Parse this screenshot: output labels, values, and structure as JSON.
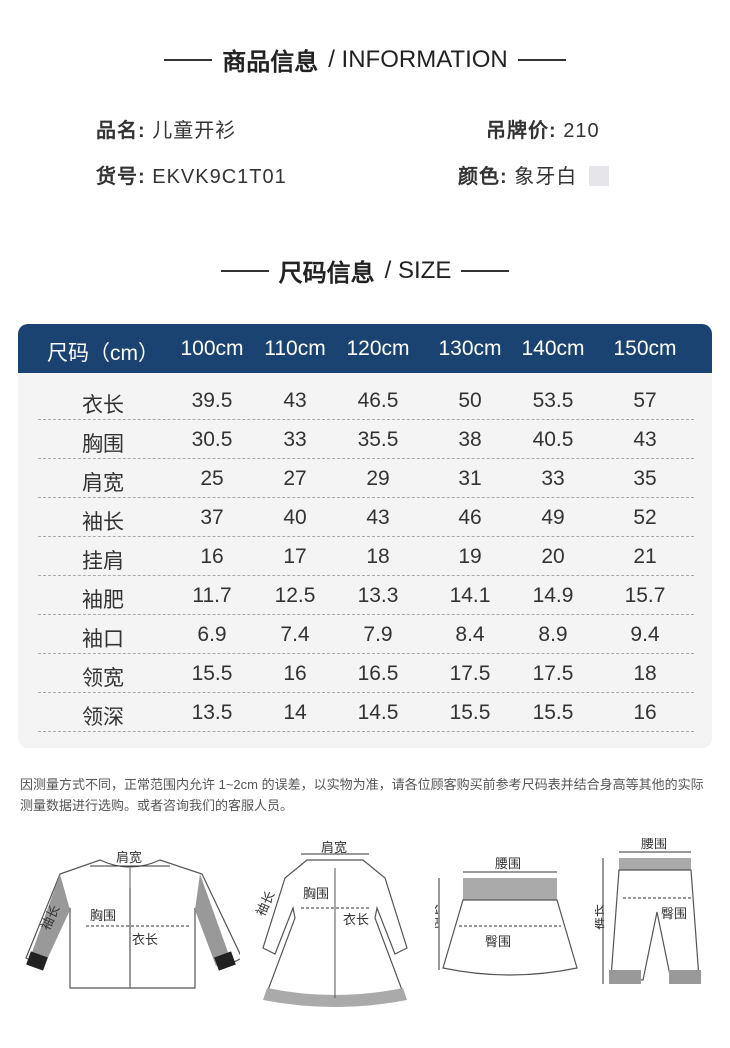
{
  "info_section": {
    "title_cn": "商品信息",
    "title_en": "/ INFORMATION"
  },
  "info": {
    "name_label": "品名:",
    "name_value": "儿童开衫",
    "price_label": "吊牌价:",
    "price_value": "210",
    "sku_label": "货号:",
    "sku_value": "EKVK9C1T01",
    "color_label": "颜色:",
    "color_value": "象牙白",
    "color_swatch": "#e6e6ea"
  },
  "size_section": {
    "title_cn": "尺码信息",
    "title_en": "/ SIZE"
  },
  "table": {
    "header": [
      "尺码（cm）",
      "100cm",
      "110cm",
      "120cm",
      "130cm",
      "140cm",
      "150cm"
    ],
    "rows": [
      [
        "衣长",
        "39.5",
        "43",
        "46.5",
        "50",
        "53.5",
        "57"
      ],
      [
        "胸围",
        "30.5",
        "33",
        "35.5",
        "38",
        "40.5",
        "43"
      ],
      [
        "肩宽",
        "25",
        "27",
        "29",
        "31",
        "33",
        "35"
      ],
      [
        "袖长",
        "37",
        "40",
        "43",
        "46",
        "49",
        "52"
      ],
      [
        "挂肩",
        "16",
        "17",
        "18",
        "19",
        "20",
        "21"
      ],
      [
        "袖肥",
        "11.7",
        "12.5",
        "13.3",
        "14.1",
        "14.9",
        "15.7"
      ],
      [
        "袖口",
        "6.9",
        "7.4",
        "7.9",
        "8.4",
        "8.9",
        "9.4"
      ],
      [
        "领宽",
        "15.5",
        "16",
        "16.5",
        "17.5",
        "17.5",
        "18"
      ],
      [
        "领深",
        "13.5",
        "14",
        "14.5",
        "15.5",
        "15.5",
        "16"
      ]
    ],
    "header_color": "#1b4371"
  },
  "note": "因测量方式不同，正常范围内允许 1~2cm 的误差，以实物为准，请各位顾客购买前参考尺码表并结合身高等其他的实际测量数据进行选购。或者咨询我们的客服人员。",
  "diagrams": {
    "cardigan": {
      "shoulder": "肩宽",
      "sleeve": "袖长",
      "chest": "胸围",
      "length": "衣长"
    },
    "dress": {
      "shoulder": "肩宽",
      "sleeve": "袖长",
      "chest": "胸围",
      "length": "衣长"
    },
    "skirt": {
      "waist": "腰围",
      "length": "裙长",
      "hip": "臀围"
    },
    "pants": {
      "waist": "腰围",
      "length": "裤长",
      "hip": "臀围"
    }
  }
}
